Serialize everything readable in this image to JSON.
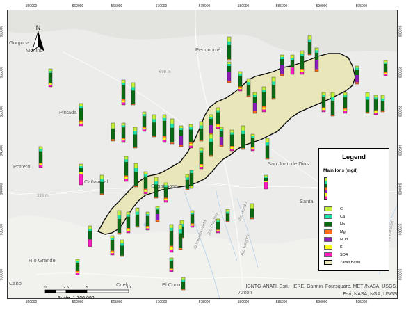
{
  "map": {
    "axis_ticks_x": [
      "550000",
      "560000",
      "565000",
      "570000",
      "575000",
      "580000",
      "585000",
      "590000",
      "595000"
    ],
    "axis_ticks_y": [
      "960000",
      "955000",
      "950000",
      "945000",
      "940000",
      "935000",
      "930000"
    ],
    "north_label": "N",
    "places": [
      {
        "name": "Gorgona",
        "kind": "town"
      },
      {
        "name": "Mohino",
        "kind": "town"
      },
      {
        "name": "Penonomé",
        "kind": "town"
      },
      {
        "name": "Pintada",
        "kind": "town"
      },
      {
        "name": "Potrero",
        "kind": "town"
      },
      {
        "name": "Cañaveral",
        "kind": "town"
      },
      {
        "name": "Sagarmosa",
        "kind": "town"
      },
      {
        "name": "San Juan de Dios",
        "kind": "town"
      },
      {
        "name": "Santa",
        "kind": "town"
      },
      {
        "name": "Río Grande",
        "kind": "town"
      },
      {
        "name": "Caño",
        "kind": "town"
      },
      {
        "name": "Cuelo",
        "kind": "town"
      },
      {
        "name": "El Coco",
        "kind": "town"
      },
      {
        "name": "Antón",
        "kind": "town"
      },
      {
        "name": "698 m",
        "kind": "elev"
      },
      {
        "name": "393 m",
        "kind": "elev"
      },
      {
        "name": "Quebrada Marta",
        "kind": "river"
      },
      {
        "name": "Rio Chorrera",
        "kind": "river"
      },
      {
        "name": "Rio Hondo",
        "kind": "river"
      },
      {
        "name": "Rio Estancia",
        "kind": "river"
      },
      {
        "name": "Rio Farallón",
        "kind": "river"
      }
    ],
    "attribution": "IGNTG-ANATI, Esri, HERE, Garmin, Foursquare, METI/NASA, USGS, Esri, NASA, NGA, USGS"
  },
  "legend": {
    "title": "Legend",
    "subtitle": "Main Ions (mg/l)",
    "items": [
      {
        "label": "Cl",
        "color": "#c5f03a"
      },
      {
        "label": "Ca",
        "color": "#1ee3a8"
      },
      {
        "label": "Na",
        "color": "#0b6b12"
      },
      {
        "label": "Mg",
        "color": "#ff6b1a"
      },
      {
        "label": "NO3",
        "color": "#8a1cb8"
      },
      {
        "label": "K",
        "color": "#fffc1a"
      },
      {
        "label": "SO4",
        "color": "#ff1cc0"
      },
      {
        "label": "Zarati Basin",
        "color": "#e9e6b8",
        "outline": "#000000"
      }
    ]
  },
  "scalebar": {
    "ticks": [
      "0",
      "2.5",
      "5",
      "10"
    ],
    "label": "Scale: 1:250,000"
  }
}
